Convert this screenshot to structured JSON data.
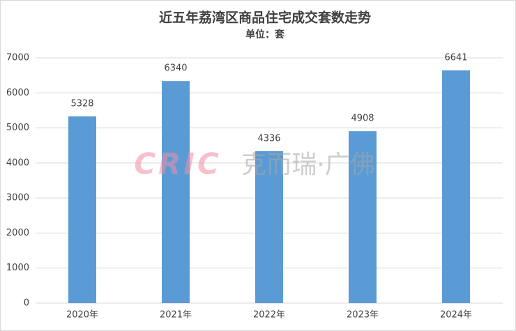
{
  "chart_data": {
    "type": "bar",
    "title": "近五年荔湾区商品住宅成交套数走势",
    "subtitle": "单位：套",
    "categories": [
      "2020年",
      "2021年",
      "2022年",
      "2023年",
      "2024年"
    ],
    "values": [
      5328,
      6340,
      4336,
      4908,
      6641
    ],
    "color": "#5b9bd5",
    "ylim": [
      0,
      7000
    ],
    "yticks": [
      0,
      1000,
      2000,
      3000,
      4000,
      5000,
      6000,
      7000
    ],
    "grid": true,
    "watermark": {
      "logo": "CRIC",
      "text": "克而瑞·广佛"
    }
  }
}
